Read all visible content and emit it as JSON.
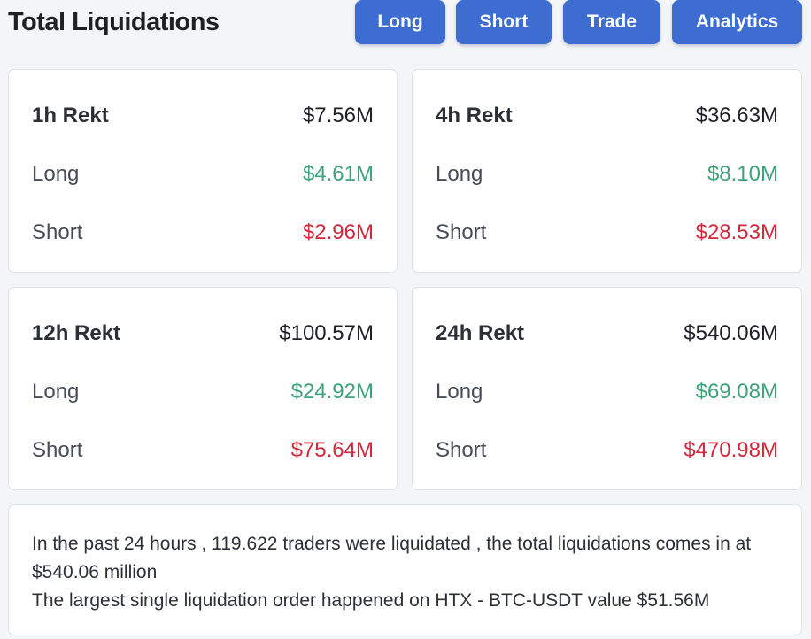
{
  "header": {
    "title": "Total Liquidations",
    "buttons": {
      "long": "Long",
      "short": "Short",
      "trade": "Trade",
      "analytics": "Analytics"
    }
  },
  "cards": {
    "h1": {
      "period_label": "1h Rekt",
      "total": "$7.56M",
      "long_label": "Long",
      "long_value": "$4.61M",
      "short_label": "Short",
      "short_value": "$2.96M"
    },
    "h4": {
      "period_label": "4h Rekt",
      "total": "$36.63M",
      "long_label": "Long",
      "long_value": "$8.10M",
      "short_label": "Short",
      "short_value": "$28.53M"
    },
    "h12": {
      "period_label": "12h Rekt",
      "total": "$100.57M",
      "long_label": "Long",
      "long_value": "$24.92M",
      "short_label": "Short",
      "short_value": "$75.64M"
    },
    "h24": {
      "period_label": "24h Rekt",
      "total": "$540.06M",
      "long_label": "Long",
      "long_value": "$69.08M",
      "short_label": "Short",
      "short_value": "$470.98M"
    }
  },
  "summary": {
    "line1": "In the past 24 hours , 119.622 traders were liquidated , the total liquidations comes in at $540.06 million",
    "line2": "The largest single liquidation order happened on HTX - BTC-USDT value $51.56M"
  },
  "colors": {
    "button_blue": "#3d6dd1",
    "long_green": "#3fa37a",
    "short_red": "#d2283c"
  }
}
